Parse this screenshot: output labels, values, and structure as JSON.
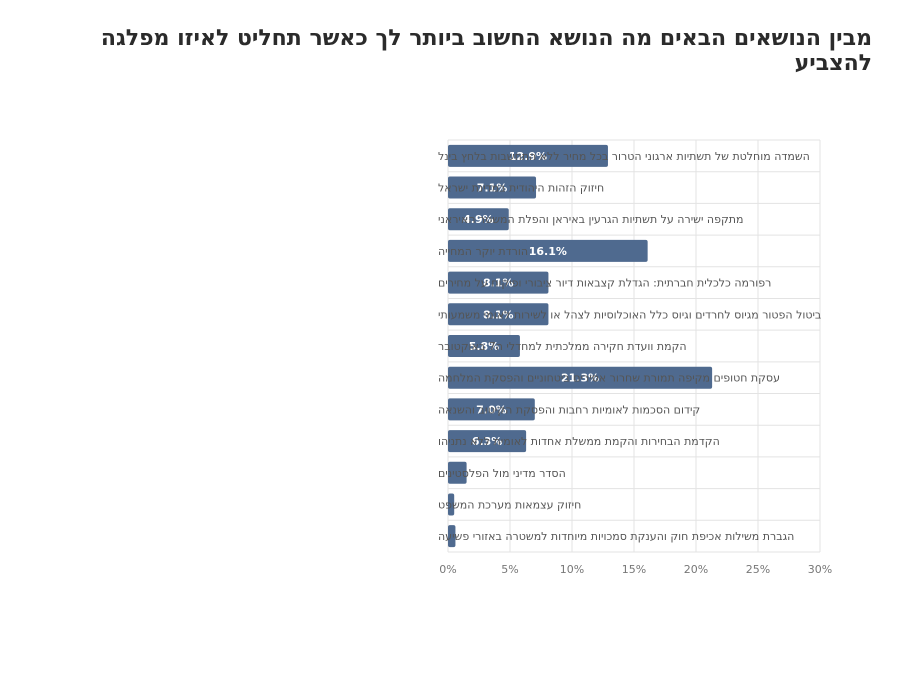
{
  "chart_data": {
    "type": "bar",
    "orientation": "horizontal",
    "title": "מבין הנושאים הבאים מה הנושא החשוב ביותר לך כאשר תחליט לאיזו מפלגה להצביע",
    "categories": [
      "השמדה מוחלטת של תשתיות ארגוני הטרור בכל מחיר ללא התחשבות בלחץ בינל",
      "חיזוק הזהות היהודית במדינת ישראל",
      "מתקפה ישירה על תשתיות הגרעין באיראן והפלת המשטר האיראני",
      "הורדת יוקר המחייה",
      "רפורמה כלכלית חברתית: הגדלת קצבאות דיור ציבורי ופיקוח על מחירים",
      "ביטול הפטור מגיוס לחרדים וגיוס כלל האוכלוסיות לצהל או לשירות לאומי משמעותי",
      "הקמת וועדת חקירה ממלכתית למחדלי ה7 באוקטובר",
      "עסקת חטופים מקיפה תמורת שחרור אסירים ביטחוניים והפסקת המלחמה",
      "קידום הסכמות לאומיות רחבות והפסקת הקיטוב והשנאה",
      "הקדמת הבחירות והקמת ממשלת אחדות לאומית ללא נתניהו",
      "הסדר מדיני מול הפלסטינים",
      "חיזוק עצמאות מערכת המשפט",
      "הגברת משילות אכיפת חוק והענקת סמכויות מיוחדות למשטרה באזורי פשיעה"
    ],
    "values": [
      12.9,
      7.1,
      4.9,
      16.1,
      8.1,
      8.1,
      5.8,
      21.3,
      7.0,
      6.3,
      1.5,
      0.5,
      0.6
    ],
    "data_labels": [
      "12.9%",
      "7.1%",
      "4.9%",
      "16.1%",
      "8.1%",
      "8.1%",
      "5.8%",
      "21.3%",
      "7.0%",
      "6.3%",
      "",
      "",
      ""
    ],
    "xlim": [
      0,
      30
    ],
    "xticks": [
      0,
      5,
      10,
      15,
      20,
      25,
      30
    ],
    "xtick_labels": [
      "0%",
      "5%",
      "10%",
      "15%",
      "20%",
      "25%",
      "30%"
    ],
    "grid": true,
    "bar_color": "#4f6a8f"
  }
}
